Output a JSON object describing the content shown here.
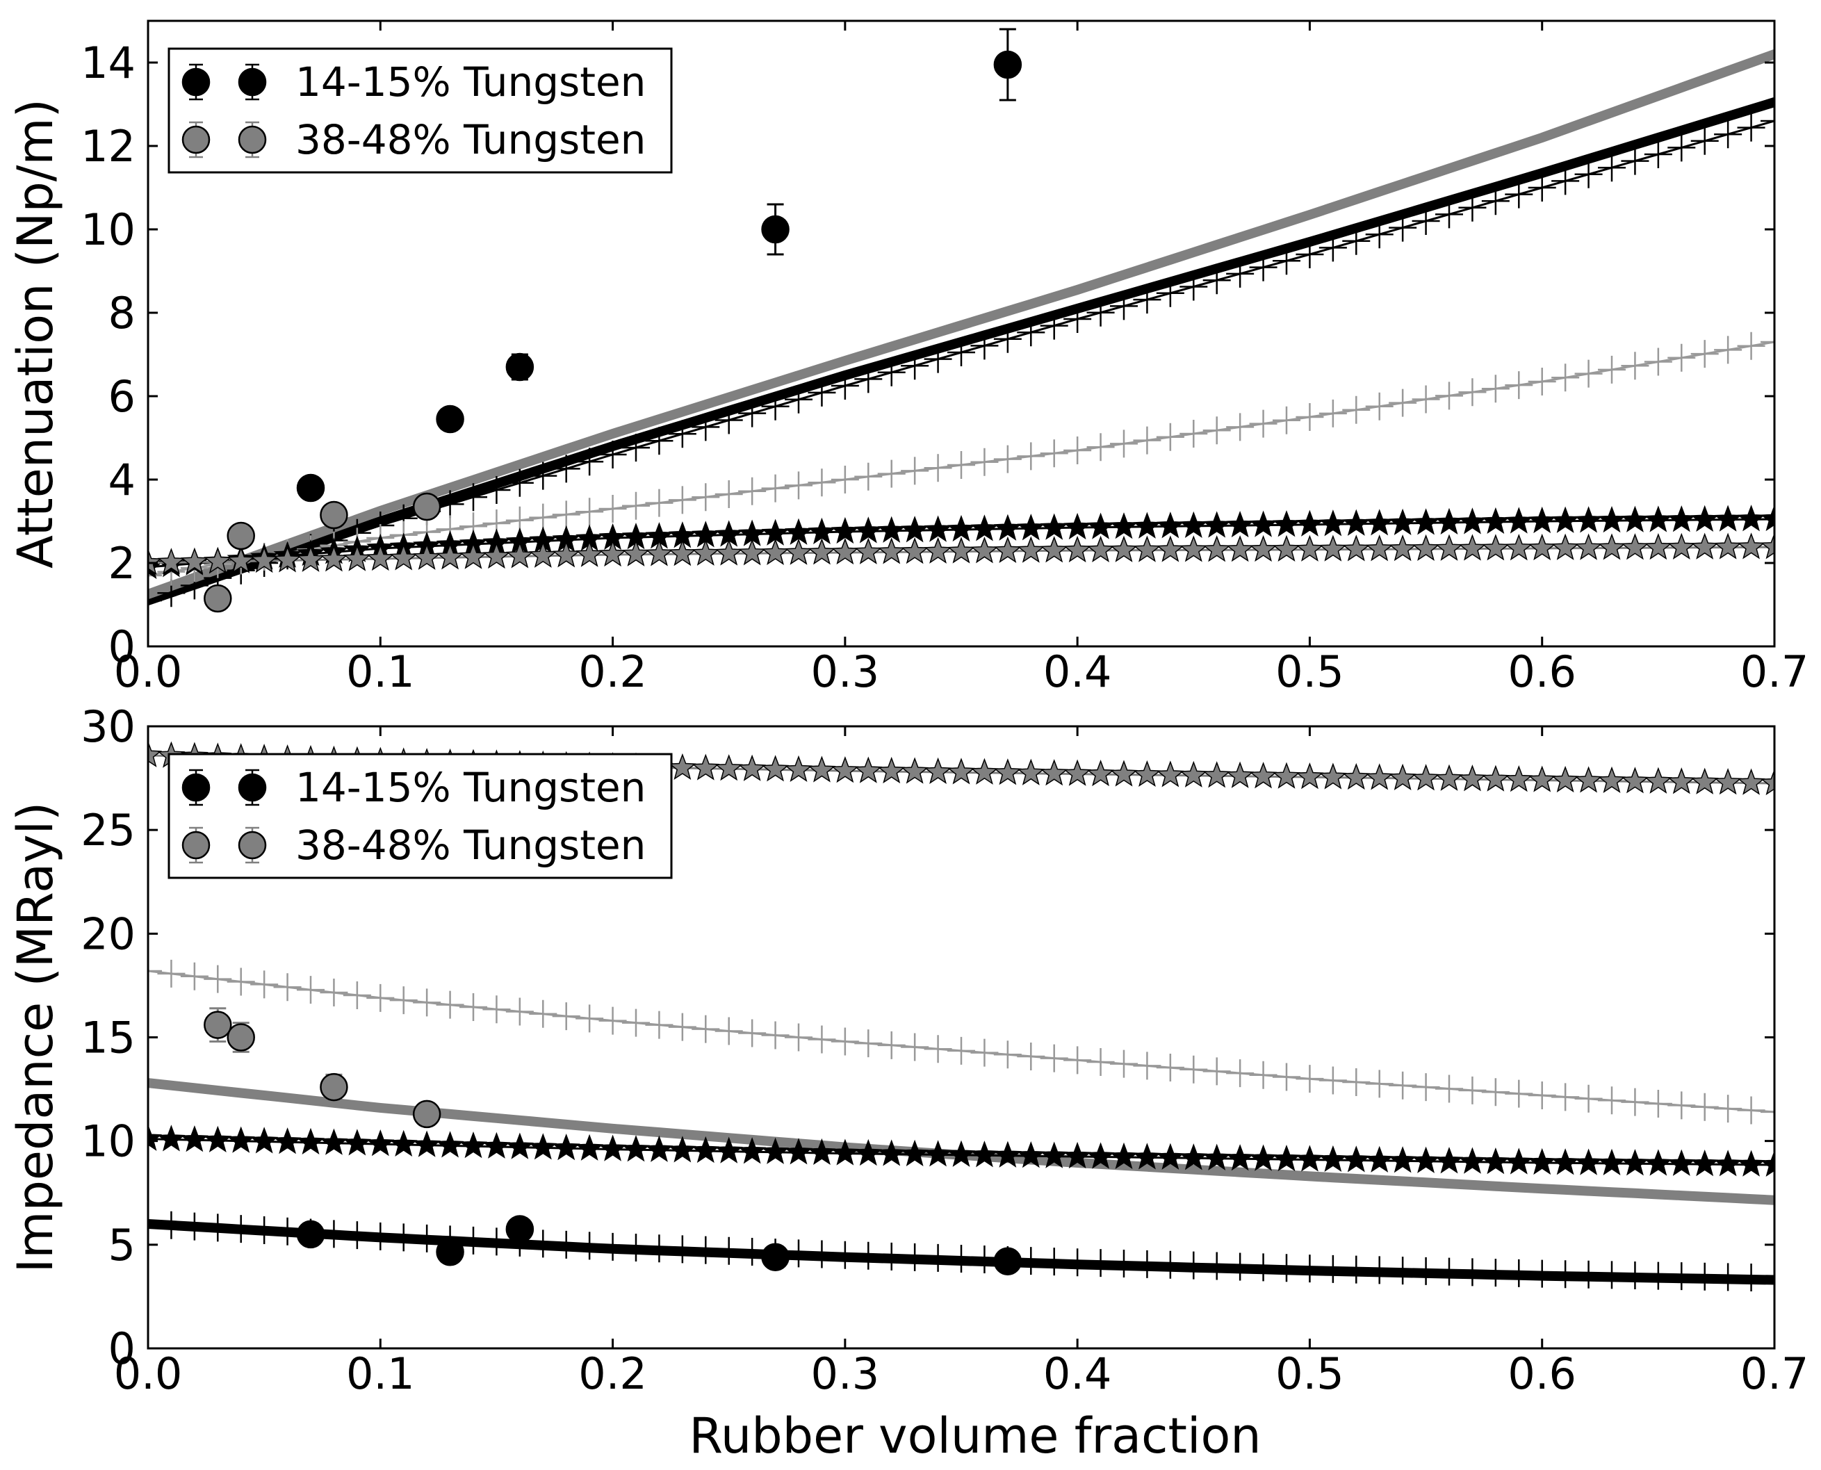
{
  "figure": {
    "xlabel": "Rubber volume fraction"
  },
  "chart_data": [
    {
      "id": "attenuation",
      "type": "line",
      "title": "",
      "xlabel": "",
      "ylabel": "Attenuation (Np/m)",
      "xlim": [
        0.0,
        0.7
      ],
      "ylim": [
        0,
        15
      ],
      "xticks": [
        "0.0",
        "0.1",
        "0.2",
        "0.3",
        "0.4",
        "0.5",
        "0.6",
        "0.7"
      ],
      "xtick_values": [
        0.0,
        0.1,
        0.2,
        0.3,
        0.4,
        0.5,
        0.6,
        0.7
      ],
      "yticks": [
        "0",
        "2",
        "4",
        "6",
        "8",
        "10",
        "12",
        "14"
      ],
      "ytick_values": [
        0,
        2,
        4,
        6,
        8,
        10,
        12,
        14
      ],
      "legend": {
        "position": "top-left",
        "entries": [
          {
            "label": "14-15% Tungsten",
            "color": "#000000"
          },
          {
            "label": "38-48% Tungsten",
            "color": "#808080"
          }
        ]
      },
      "measured": [
        {
          "name": "14-15% Tungsten",
          "color": "#000000",
          "x": [
            0.07,
            0.13,
            0.16,
            0.27,
            0.37
          ],
          "y": [
            3.8,
            5.45,
            6.7,
            10.0,
            13.95
          ],
          "err": [
            0.15,
            0.2,
            0.3,
            0.6,
            0.85
          ]
        },
        {
          "name": "38-48% Tungsten",
          "color": "#808080",
          "x": [
            0.03,
            0.04,
            0.08,
            0.12
          ],
          "y": [
            1.15,
            2.65,
            3.15,
            3.35
          ],
          "err": [
            0.1,
            0.15,
            0.2,
            0.2
          ]
        }
      ],
      "model_curves": [
        {
          "name": "model-solid-black",
          "style": "thick",
          "marker": "none",
          "color": "#000000",
          "x": [
            0.0,
            0.1,
            0.2,
            0.3,
            0.4,
            0.5,
            0.6,
            0.7
          ],
          "y": [
            1.1,
            3.0,
            4.8,
            6.5,
            8.1,
            9.7,
            11.35,
            13.05
          ]
        },
        {
          "name": "model-solid-gray",
          "style": "thick",
          "marker": "none",
          "color": "#808080",
          "x": [
            0.0,
            0.1,
            0.2,
            0.3,
            0.4,
            0.5,
            0.6,
            0.7
          ],
          "y": [
            1.25,
            3.25,
            5.1,
            6.85,
            8.55,
            10.35,
            12.2,
            14.2
          ]
        },
        {
          "name": "model-plus-black",
          "style": "thin",
          "marker": "plus",
          "color": "#000000",
          "x": [
            0.0,
            0.1,
            0.2,
            0.3,
            0.4,
            0.5,
            0.6,
            0.7
          ],
          "y": [
            1.1,
            2.9,
            4.6,
            6.25,
            7.85,
            9.4,
            11.0,
            12.6
          ]
        },
        {
          "name": "model-plus-gray",
          "style": "thin",
          "marker": "plus",
          "color": "#999999",
          "x": [
            0.0,
            0.1,
            0.2,
            0.3,
            0.4,
            0.5,
            0.6,
            0.7
          ],
          "y": [
            1.7,
            2.6,
            3.3,
            4.0,
            4.7,
            5.5,
            6.35,
            7.3
          ]
        },
        {
          "name": "model-star-black",
          "style": "thin",
          "marker": "star",
          "color": "#000000",
          "x": [
            0.0,
            0.1,
            0.2,
            0.3,
            0.4,
            0.5,
            0.6,
            0.7
          ],
          "y": [
            1.9,
            2.35,
            2.6,
            2.75,
            2.85,
            2.92,
            3.0,
            3.05
          ]
        },
        {
          "name": "model-star-gray",
          "style": "thin",
          "marker": "star",
          "color": "#808080",
          "x": [
            0.0,
            0.1,
            0.2,
            0.3,
            0.4,
            0.5,
            0.6,
            0.7
          ],
          "y": [
            2.0,
            2.1,
            2.2,
            2.25,
            2.3,
            2.32,
            2.35,
            2.38
          ]
        }
      ]
    },
    {
      "id": "impedance",
      "type": "line",
      "title": "",
      "xlabel": "Rubber volume fraction",
      "ylabel": "Impedance (MRayl)",
      "xlim": [
        0.0,
        0.7
      ],
      "ylim": [
        0,
        30
      ],
      "xticks": [
        "0.0",
        "0.1",
        "0.2",
        "0.3",
        "0.4",
        "0.5",
        "0.6",
        "0.7"
      ],
      "xtick_values": [
        0.0,
        0.1,
        0.2,
        0.3,
        0.4,
        0.5,
        0.6,
        0.7
      ],
      "yticks": [
        "0",
        "5",
        "10",
        "15",
        "20",
        "25",
        "30"
      ],
      "ytick_values": [
        0,
        5,
        10,
        15,
        20,
        25,
        30
      ],
      "legend": {
        "position": "top-left",
        "entries": [
          {
            "label": "14-15% Tungsten",
            "color": "#000000"
          },
          {
            "label": "38-48% Tungsten",
            "color": "#808080"
          }
        ]
      },
      "measured": [
        {
          "name": "14-15% Tungsten",
          "color": "#000000",
          "x": [
            0.07,
            0.13,
            0.16,
            0.27,
            0.37
          ],
          "y": [
            5.5,
            4.65,
            5.75,
            4.4,
            4.2
          ],
          "err": [
            0.2,
            0.2,
            0.2,
            0.2,
            0.2
          ]
        },
        {
          "name": "38-48% Tungsten",
          "color": "#808080",
          "x": [
            0.03,
            0.04,
            0.08,
            0.12
          ],
          "y": [
            15.6,
            15.0,
            12.6,
            11.3
          ],
          "err": [
            0.8,
            0.7,
            0.6,
            0.5
          ]
        }
      ],
      "model_curves": [
        {
          "name": "model-solid-black",
          "style": "thick",
          "marker": "none",
          "color": "#000000",
          "x": [
            0.0,
            0.1,
            0.2,
            0.3,
            0.4,
            0.5,
            0.6,
            0.7
          ],
          "y": [
            6.0,
            5.35,
            4.8,
            4.4,
            4.05,
            3.75,
            3.5,
            3.3
          ]
        },
        {
          "name": "model-solid-gray",
          "style": "thick",
          "marker": "none",
          "color": "#808080",
          "x": [
            0.0,
            0.1,
            0.2,
            0.3,
            0.4,
            0.5,
            0.6,
            0.7
          ],
          "y": [
            12.8,
            11.6,
            10.6,
            9.7,
            8.95,
            8.3,
            7.7,
            7.15
          ]
        },
        {
          "name": "model-plus-black",
          "style": "thin",
          "marker": "plus",
          "color": "#000000",
          "x": [
            0.0,
            0.1,
            0.2,
            0.3,
            0.4,
            0.5,
            0.6,
            0.7
          ],
          "y": [
            6.0,
            5.4,
            4.9,
            4.5,
            4.15,
            3.85,
            3.6,
            3.4
          ]
        },
        {
          "name": "model-plus-gray",
          "style": "thin",
          "marker": "plus",
          "color": "#999999",
          "x": [
            0.0,
            0.1,
            0.2,
            0.3,
            0.4,
            0.5,
            0.6,
            0.7
          ],
          "y": [
            18.2,
            16.9,
            15.8,
            14.8,
            13.9,
            13.0,
            12.2,
            11.4
          ]
        },
        {
          "name": "model-star-black",
          "style": "thin",
          "marker": "star",
          "color": "#000000",
          "x": [
            0.0,
            0.1,
            0.2,
            0.3,
            0.4,
            0.5,
            0.6,
            0.7
          ],
          "y": [
            10.1,
            9.85,
            9.6,
            9.4,
            9.25,
            9.1,
            8.95,
            8.85
          ]
        },
        {
          "name": "model-star-gray",
          "style": "thin",
          "marker": "star",
          "color": "#808080",
          "x": [
            0.0,
            0.1,
            0.2,
            0.3,
            0.4,
            0.5,
            0.6,
            0.7
          ],
          "y": [
            28.6,
            28.3,
            28.05,
            27.85,
            27.7,
            27.55,
            27.4,
            27.25
          ]
        }
      ]
    }
  ]
}
